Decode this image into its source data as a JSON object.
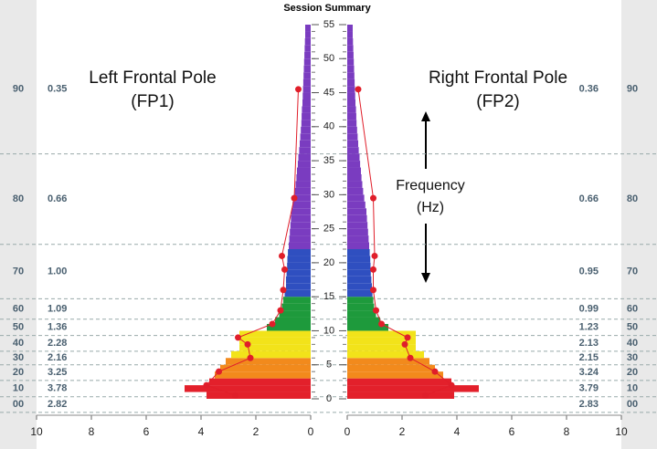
{
  "chart_data": {
    "type": "butterfly",
    "title": "Session Summary",
    "annotation": "Frequency (Hz)",
    "ylim": [
      0,
      55
    ],
    "yticks": [
      0,
      5,
      10,
      15,
      20,
      25,
      30,
      35,
      40,
      45,
      50,
      55
    ],
    "xlim": [
      0,
      10
    ],
    "xticks": [
      0,
      2,
      4,
      6,
      8,
      10
    ],
    "frequencies": [
      0,
      1,
      2,
      3,
      4,
      5,
      6,
      7,
      8,
      9,
      10,
      11,
      12,
      13,
      14,
      15,
      16,
      17,
      18,
      19,
      20,
      21,
      22,
      23,
      24,
      25,
      26,
      27,
      28,
      29,
      30,
      31,
      32,
      33,
      34,
      35,
      36,
      37,
      38,
      39,
      40,
      41,
      42,
      43,
      44,
      45,
      46,
      47,
      48,
      49,
      50,
      51,
      52,
      53,
      54
    ],
    "color_bands": [
      {
        "from": 0,
        "to": 3,
        "color": "#e3202b"
      },
      {
        "from": 3,
        "to": 6,
        "color": "#f28a1c"
      },
      {
        "from": 6,
        "to": 10,
        "color": "#f2e31a"
      },
      {
        "from": 10,
        "to": 15,
        "color": "#1e9a3c"
      },
      {
        "from": 15,
        "to": 22,
        "color": "#2f4fc0"
      },
      {
        "from": 22,
        "to": 55,
        "color": "#7a3cc0"
      }
    ],
    "band_edges": [
      55,
      36,
      22.7,
      14.7,
      11.7,
      9.3,
      7,
      5,
      2.7,
      0.3,
      -2
    ],
    "percentiles": [
      "90",
      "80",
      "70",
      "60",
      "50",
      "40",
      "30",
      "20",
      "10",
      "00"
    ],
    "series": [
      {
        "name": "Left Frontal Pole (FP1)",
        "side": "left",
        "dot_color": "#e01e2a",
        "values": [
          3.8,
          4.6,
          3.7,
          3.5,
          3.3,
          3.1,
          2.9,
          2.6,
          2.6,
          2.6,
          1.6,
          1.3,
          1.15,
          1.05,
          1.0,
          0.95,
          0.9,
          0.9,
          0.88,
          0.86,
          0.85,
          0.83,
          0.8,
          0.78,
          0.76,
          0.74,
          0.72,
          0.7,
          0.66,
          0.62,
          0.58,
          0.55,
          0.52,
          0.5,
          0.47,
          0.45,
          0.42,
          0.4,
          0.38,
          0.36,
          0.34,
          0.33,
          0.32,
          0.3,
          0.29,
          0.28,
          0.27,
          0.26,
          0.25,
          0.24,
          0.23,
          0.22,
          0.21,
          0.2,
          0.2
        ],
        "dot_freqs": [
          0.5,
          2,
          4,
          6,
          8,
          9,
          11,
          13,
          16,
          19,
          21,
          29.5,
          45.5
        ],
        "dot_values": [
          2.75,
          3.8,
          3.35,
          2.2,
          2.3,
          2.65,
          1.4,
          1.1,
          1.0,
          0.95,
          1.05,
          0.6,
          0.45
        ],
        "percentile_values": [
          "0.35",
          "0.66",
          "1.00",
          "1.09",
          "1.36",
          "2.28",
          "2.16",
          "3.25",
          "3.78",
          "2.82"
        ]
      },
      {
        "name": "Right Frontal Pole (FP2)",
        "side": "right",
        "dot_color": "#e01e2a",
        "values": [
          3.9,
          4.8,
          3.8,
          3.5,
          3.2,
          3.0,
          2.8,
          2.5,
          2.5,
          2.5,
          1.5,
          1.2,
          1.05,
          0.98,
          0.95,
          0.92,
          0.9,
          0.88,
          0.86,
          0.85,
          0.84,
          0.82,
          0.8,
          0.78,
          0.76,
          0.74,
          0.72,
          0.7,
          0.66,
          0.62,
          0.58,
          0.55,
          0.52,
          0.5,
          0.47,
          0.45,
          0.42,
          0.4,
          0.38,
          0.36,
          0.34,
          0.33,
          0.32,
          0.3,
          0.29,
          0.28,
          0.27,
          0.26,
          0.25,
          0.24,
          0.23,
          0.22,
          0.21,
          0.2,
          0.2
        ],
        "dot_freqs": [
          0.5,
          2,
          4,
          6,
          8,
          9,
          11,
          13,
          16,
          19,
          21,
          29.5,
          45.5
        ],
        "dot_values": [
          2.85,
          3.8,
          3.2,
          2.3,
          2.1,
          2.2,
          1.25,
          1.05,
          0.95,
          0.95,
          1.0,
          0.95,
          0.4
        ],
        "percentile_values": [
          "0.36",
          "0.66",
          "0.95",
          "0.99",
          "1.23",
          "2.13",
          "2.15",
          "3.24",
          "3.79",
          "2.83"
        ]
      }
    ]
  }
}
